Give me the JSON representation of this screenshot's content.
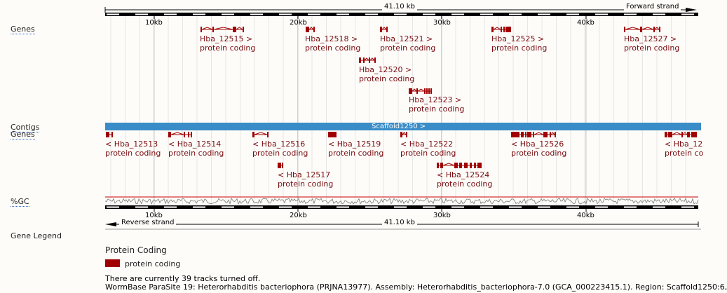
{
  "scale": {
    "length_label": "41.10 kb",
    "forward_strand_label": "Forward strand",
    "reverse_strand_label": "Reverse strand",
    "tick_labels": [
      "10kb",
      "20kb",
      "30kb",
      "40kb"
    ]
  },
  "tracks": {
    "genes_forward_label": "Genes",
    "contigs_label": "Contigs",
    "genes_reverse_label": "Genes",
    "gc_label": "%GC",
    "contig_name": "Scaffold1250 >",
    "contig_color": "#3a8cc8"
  },
  "forward_genes": [
    {
      "id": "Hba_12515 >",
      "biotype": "protein coding"
    },
    {
      "id": "Hba_12518 >",
      "biotype": "protein coding"
    },
    {
      "id": "Hba_12521 >",
      "biotype": "protein coding"
    },
    {
      "id": "Hba_12525 >",
      "biotype": "protein coding"
    },
    {
      "id": "Hba_12527 >",
      "biotype": "protein coding"
    },
    {
      "id": "Hba_12520 >",
      "biotype": "protein coding"
    },
    {
      "id": "Hba_12523 >",
      "biotype": "protein coding"
    }
  ],
  "reverse_genes": [
    {
      "id": "< Hba_12513",
      "biotype": "protein coding"
    },
    {
      "id": "< Hba_12514",
      "biotype": "protein coding"
    },
    {
      "id": "< Hba_12516",
      "biotype": "protein coding"
    },
    {
      "id": "< Hba_12519",
      "biotype": "protein coding"
    },
    {
      "id": "< Hba_12522",
      "biotype": "protein coding"
    },
    {
      "id": "< Hba_12526",
      "biotype": "protein coding"
    },
    {
      "id": "< Hba_12",
      "biotype": "protein co"
    },
    {
      "id": "< Hba_12517",
      "biotype": "protein coding"
    },
    {
      "id": "< Hba_12524",
      "biotype": "protein coding"
    }
  ],
  "legend": {
    "section_label": "Gene Legend",
    "group_title": "Protein Coding",
    "item_label": "protein coding",
    "item_color": "#a00000"
  },
  "footer": {
    "tracks_off": "There are currently 39 tracks turned off.",
    "info": "WormBase ParaSite 19: Heterorhabditis bacteriophora (PRJNA13977). Assembly: Heterorhabditis_bacteriophora-7.0 (GCA_000223415.1). Region: Scaffold1250:6,"
  },
  "colors": {
    "gene": "#a00000",
    "gene_text": "#7a0e12",
    "gc_line": "#cc0000"
  }
}
